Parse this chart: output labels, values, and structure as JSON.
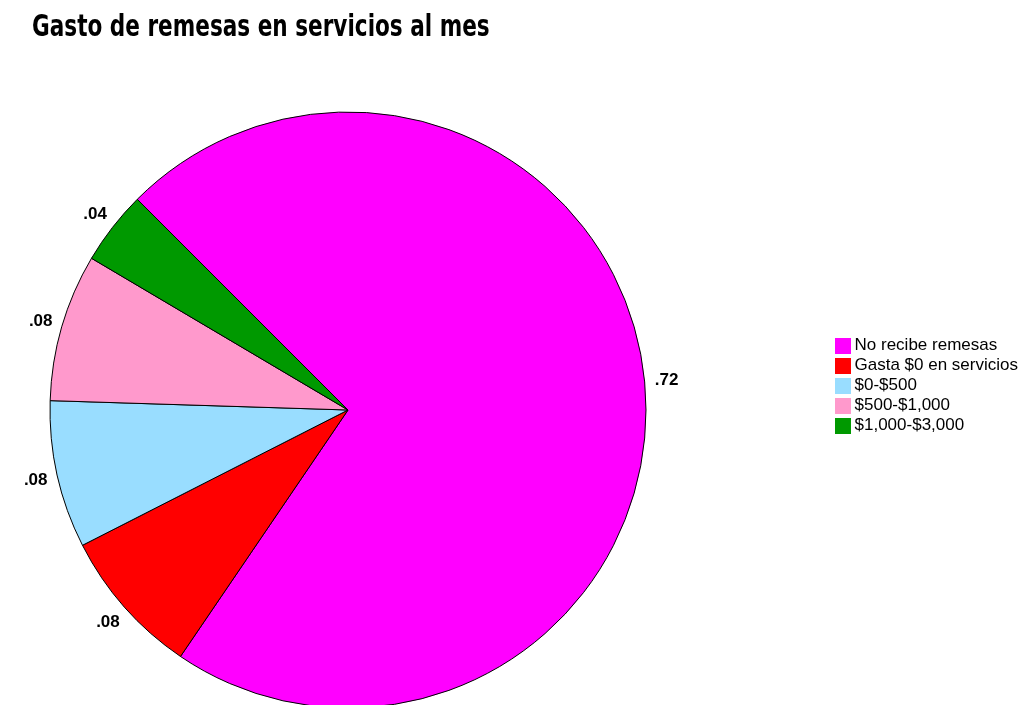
{
  "chart_data": {
    "type": "pie",
    "title": "Gasto de remesas en servicios al mes",
    "categories": [
      "No recibe remesas",
      "Gasta $0 en servicios",
      "$0-$500",
      "$500-$1,000",
      "$1,000-$3,000"
    ],
    "values": [
      0.72,
      0.08,
      0.08,
      0.08,
      0.04
    ],
    "value_labels": [
      ".72",
      ".08",
      ".08",
      ".08",
      ".04"
    ],
    "colors": [
      "#ff00ff",
      "#ff0000",
      "#99ddff",
      "#ff99cc",
      "#009900"
    ],
    "legend": "right"
  }
}
